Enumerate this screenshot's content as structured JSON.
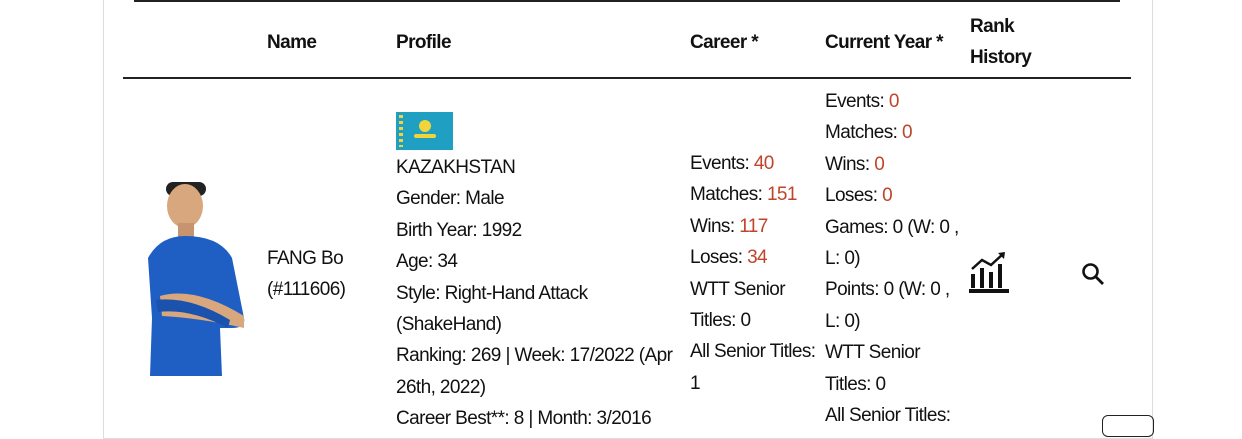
{
  "table": {
    "headers": {
      "name": "Name",
      "profile": "Profile",
      "career": "Career *",
      "current_year": "Current Year *",
      "rank_history_1": "Rank",
      "rank_history_2": "History"
    },
    "row": {
      "name": "FANG Bo",
      "id": "(#111606)",
      "profile": {
        "flag": "kazakhstan-flag",
        "country": "KAZAKHSTAN",
        "lines": [
          "Gender: Male",
          "Birth Year: 1992",
          "Age: 34",
          "Style: Right-Hand Attack",
          "(ShakeHand)",
          "Ranking: 269 | Week: 17/2022 (Apr",
          "26th, 2022)",
          "Career Best**: 8 | Month: 3/2016"
        ]
      },
      "career": {
        "events_label": "Events: ",
        "events": "40",
        "matches_label": "Matches: ",
        "matches": "151",
        "wins_label": "Wins: ",
        "wins": "117",
        "loses_label": "Loses: ",
        "loses": "34",
        "lines": [
          "WTT Senior",
          "Titles: 0",
          "All Senior Titles:",
          "1"
        ]
      },
      "current_year": {
        "events_label": "Events: ",
        "events": "0",
        "matches_label": "Matches: ",
        "matches": "0",
        "wins_label": "Wins: ",
        "wins": "0",
        "loses_label": "Loses: ",
        "loses": "0",
        "lines": [
          "Games: 0 (W: 0 ,",
          "L: 0)",
          "Points: 0 (W: 0 ,",
          "L: 0)",
          "WTT Senior",
          "Titles: 0",
          "All Senior Titles:"
        ]
      },
      "rank_history_icon": "chart-trend-icon",
      "search_icon": "search-icon"
    }
  },
  "colors": {
    "accent": "#c0442a"
  }
}
